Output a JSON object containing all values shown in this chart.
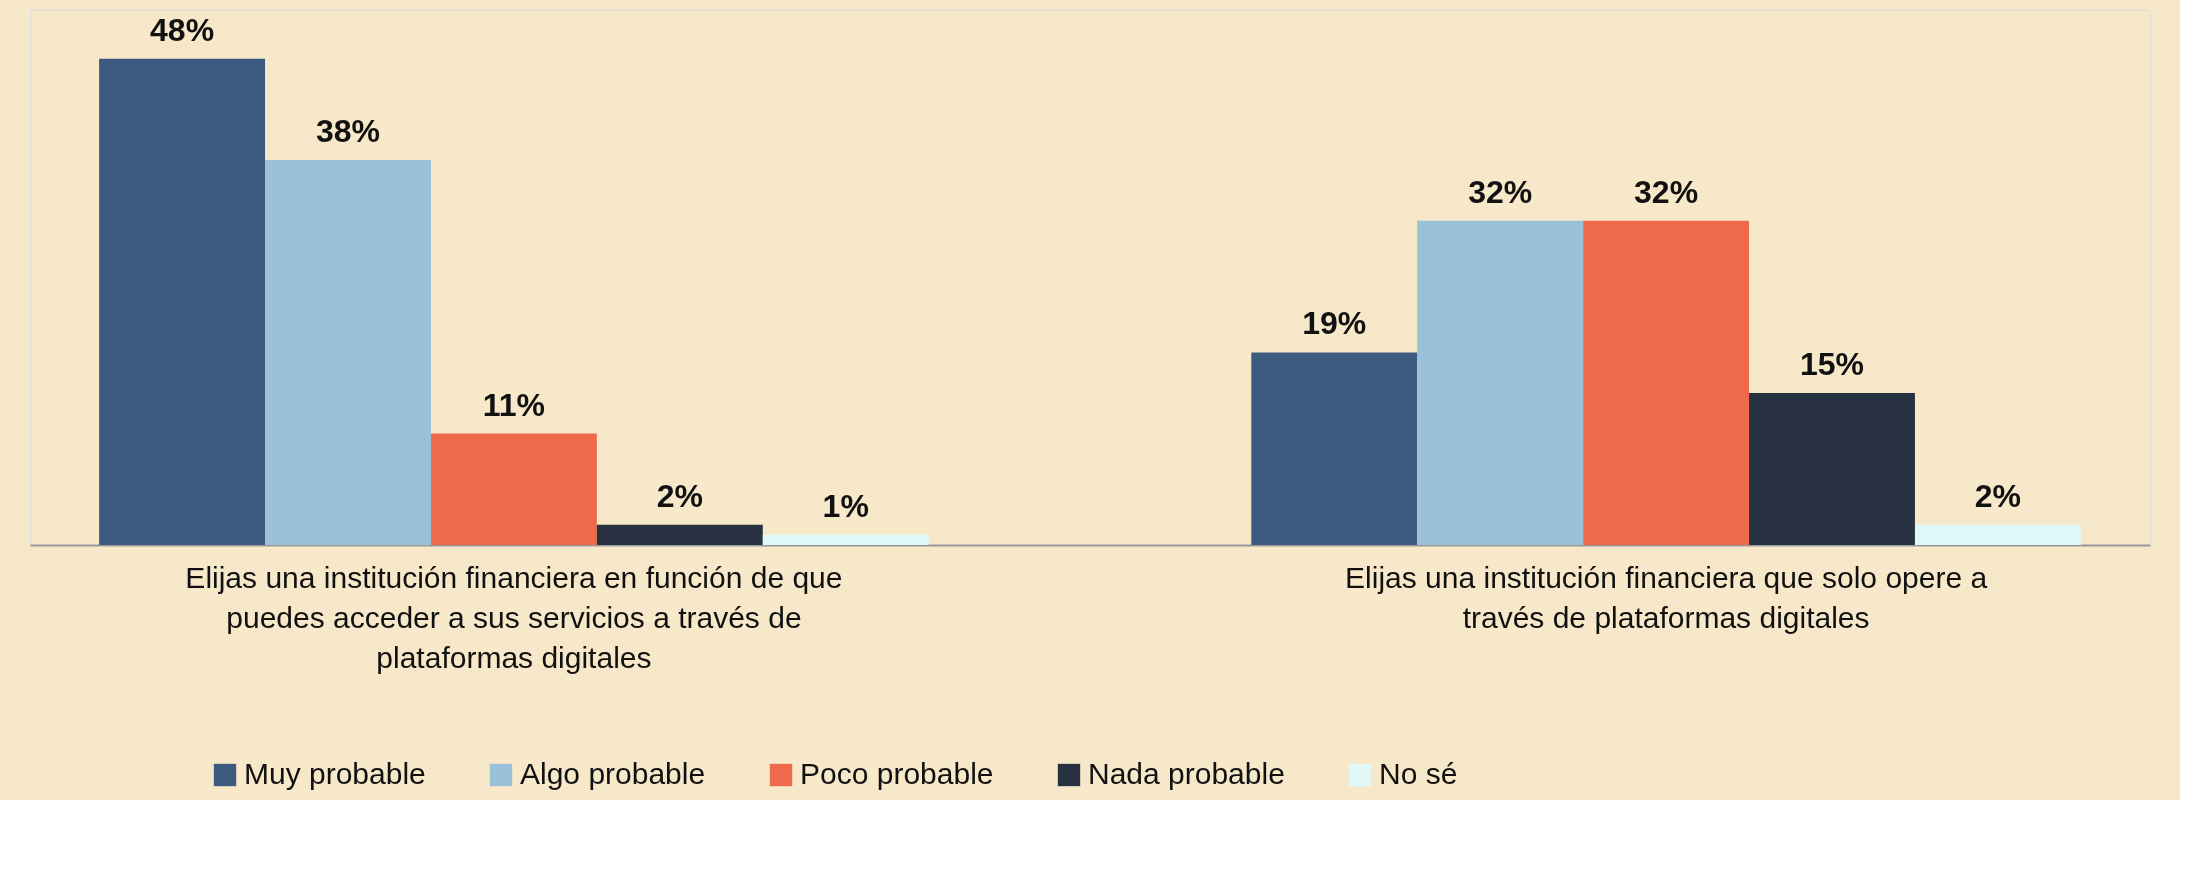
{
  "chart_data": {
    "type": "bar",
    "categories": [
      "Elijas una institución financiera en función de que puedes acceder a sus servicios a través de plataformas digitales",
      "Elijas una institución financiera que solo opere a través de plataformas digitales"
    ],
    "series": [
      {
        "name": "Muy probable",
        "color": "#3d5a80",
        "values": [
          48,
          19
        ],
        "value_labels": [
          "48%",
          "19%"
        ]
      },
      {
        "name": "Algo probable",
        "color": "#9ac0da",
        "values": [
          38,
          32
        ],
        "value_labels": [
          "38%",
          "32%"
        ]
      },
      {
        "name": "Poco probable",
        "color": "#ef6a4c",
        "values": [
          11,
          32
        ],
        "value_labels": [
          "11%",
          "32%"
        ]
      },
      {
        "name": "Nada probable",
        "color": "#273142",
        "values": [
          2,
          15
        ],
        "value_labels": [
          "2%",
          "15%"
        ]
      },
      {
        "name": "No sé",
        "color": "#e0f8f8",
        "values": [
          1,
          2
        ],
        "value_labels": [
          "1%",
          "2%"
        ]
      }
    ],
    "legend": "bottom",
    "grid": false
  }
}
